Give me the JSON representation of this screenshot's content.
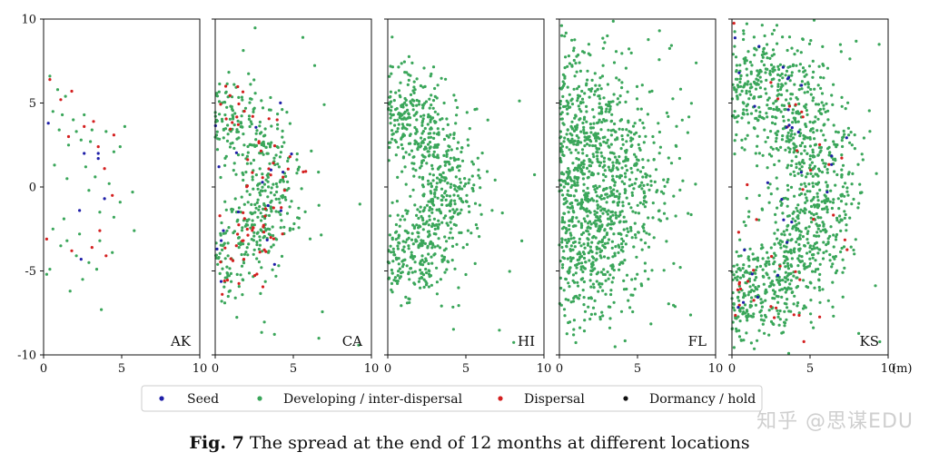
{
  "chart_data": {
    "type": "scatter",
    "x_ticks": [
      "0",
      "5",
      "10"
    ],
    "y_ticks": [
      "10",
      "5",
      "0",
      "-5",
      "-10"
    ],
    "xlim": [
      0,
      10
    ],
    "ylim": [
      -10,
      10
    ],
    "x_unit_label": "(m)",
    "grid": false,
    "legend_position": "bottom",
    "series": [
      {
        "name": "Seed",
        "color": "#1f1fa8"
      },
      {
        "name": "Developing / inter-dispersal",
        "color": "#3aa65a"
      },
      {
        "name": "Dispersal",
        "color": "#d42020"
      },
      {
        "name": "Dormancy / hold",
        "color": "#111111"
      }
    ],
    "panels": [
      {
        "label": "AK",
        "points": [
          [
            0.3,
            3.8,
            0
          ],
          [
            2.6,
            2.0,
            0
          ],
          [
            3.5,
            2.0,
            0
          ],
          [
            3.5,
            1.7,
            0
          ],
          [
            3.9,
            -0.7,
            0
          ],
          [
            2.3,
            -1.4,
            0
          ],
          [
            2.4,
            -4.3,
            0
          ],
          [
            0.4,
            6.4,
            2
          ],
          [
            1.1,
            5.2,
            2
          ],
          [
            1.8,
            5.7,
            2
          ],
          [
            1.6,
            3.0,
            2
          ],
          [
            2.6,
            3.6,
            2
          ],
          [
            3.2,
            3.9,
            2
          ],
          [
            3.5,
            2.4,
            2
          ],
          [
            3.9,
            1.1,
            2
          ],
          [
            4.5,
            3.1,
            2
          ],
          [
            4.4,
            -0.5,
            2
          ],
          [
            0.2,
            -3.1,
            2
          ],
          [
            1.8,
            -3.8,
            2
          ],
          [
            3.1,
            -3.6,
            2
          ],
          [
            4.0,
            -4.1,
            2
          ],
          [
            3.6,
            -2.6,
            2
          ],
          [
            0.4,
            6.6,
            1
          ],
          [
            0.9,
            5.8,
            1
          ],
          [
            1.4,
            5.4,
            1
          ],
          [
            0.6,
            4.5,
            1
          ],
          [
            1.2,
            4.3,
            1
          ],
          [
            1.9,
            4.0,
            1
          ],
          [
            2.6,
            4.3,
            1
          ],
          [
            3.1,
            3.4,
            1
          ],
          [
            2.1,
            3.3,
            1
          ],
          [
            1.0,
            3.4,
            1
          ],
          [
            1.6,
            2.5,
            1
          ],
          [
            2.4,
            2.8,
            1
          ],
          [
            3.0,
            2.7,
            1
          ],
          [
            4.0,
            3.3,
            1
          ],
          [
            5.2,
            3.6,
            1
          ],
          [
            4.5,
            2.1,
            1
          ],
          [
            4.9,
            2.4,
            1
          ],
          [
            2.7,
            1.2,
            1
          ],
          [
            3.3,
            0.6,
            1
          ],
          [
            4.2,
            0.2,
            1
          ],
          [
            4.9,
            -0.9,
            1
          ],
          [
            5.7,
            -0.3,
            1
          ],
          [
            3.6,
            -1.5,
            1
          ],
          [
            4.5,
            -1.8,
            1
          ],
          [
            2.9,
            -0.2,
            1
          ],
          [
            1.3,
            -1.9,
            1
          ],
          [
            0.6,
            -2.5,
            1
          ],
          [
            1.5,
            -3.2,
            1
          ],
          [
            2.3,
            -2.8,
            1
          ],
          [
            3.6,
            -3.2,
            1
          ],
          [
            4.4,
            -3.9,
            1
          ],
          [
            5.8,
            -2.6,
            1
          ],
          [
            0.4,
            -4.9,
            1
          ],
          [
            0.2,
            -5.2,
            1
          ],
          [
            2.1,
            -4.1,
            1
          ],
          [
            2.9,
            -4.5,
            1
          ],
          [
            3.4,
            -4.9,
            1
          ],
          [
            1.7,
            -6.2,
            1
          ],
          [
            3.7,
            -7.3,
            1
          ],
          [
            1.1,
            -3.5,
            1
          ],
          [
            2.5,
            -5.5,
            1
          ],
          [
            0.7,
            1.3,
            1
          ],
          [
            1.5,
            0.5,
            1
          ]
        ]
      },
      {
        "label": "CA",
        "arc": {
          "cx": 0.0,
          "cy": 0.0,
          "r": 4.0,
          "spread": 1.1,
          "n": 560,
          "seed": 11,
          "yscale": 1.0
        },
        "red_frac": 0.14,
        "blue_frac": 0.025
      },
      {
        "label": "HI",
        "arc": {
          "cx": 0.0,
          "cy": 0.0,
          "r": 4.2,
          "spread": 1.1,
          "n": 760,
          "seed": 23,
          "yscale": 1.0
        },
        "red_frac": 0.0,
        "blue_frac": 0.0
      },
      {
        "label": "FL",
        "arc": {
          "cx": 0.0,
          "cy": 0.0,
          "r": 4.2,
          "spread": 1.9,
          "n": 1150,
          "seed": 37,
          "yscale": 1.0
        },
        "red_frac": 0.0,
        "blue_frac": 0.0
      },
      {
        "label": "KS",
        "arc": {
          "cx": 0.0,
          "cy": 0.0,
          "r": 6.0,
          "spread": 1.5,
          "n": 1250,
          "seed": 53,
          "yscale": 1.0
        },
        "red_frac": 0.035,
        "blue_frac": 0.025
      }
    ]
  },
  "caption": {
    "prefix": "Fig. 7",
    "text": "The spread at the end of 12 months at different locations"
  },
  "watermark": "知乎 @思谋EDU"
}
